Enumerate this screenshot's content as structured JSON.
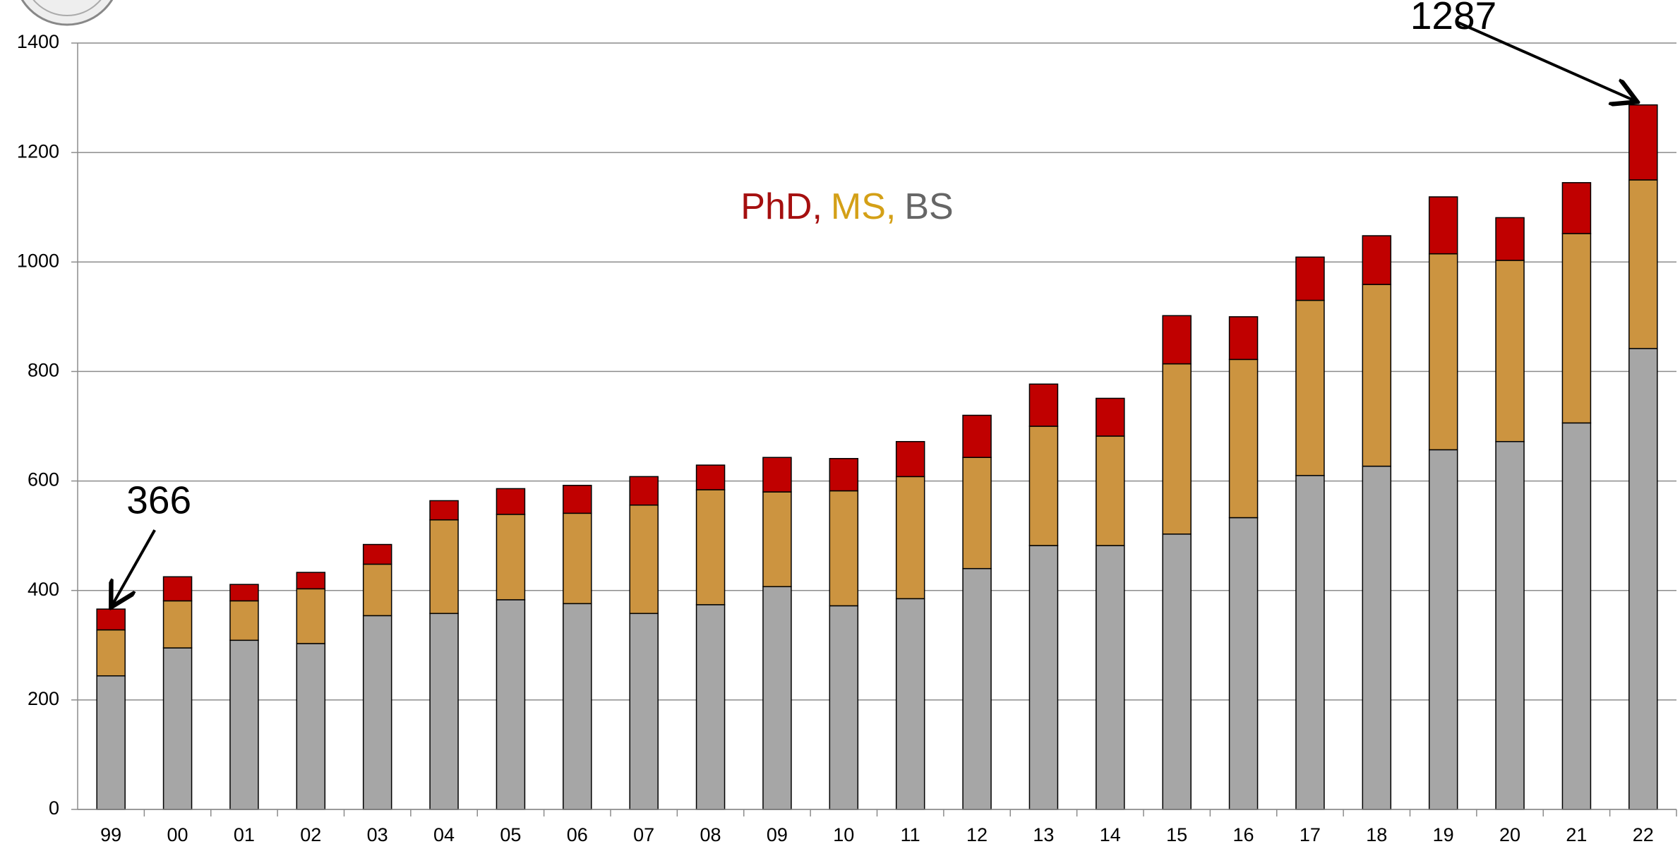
{
  "chart_data": {
    "type": "stacked_bar",
    "categories": [
      "99",
      "00",
      "01",
      "02",
      "03",
      "04",
      "05",
      "06",
      "07",
      "08",
      "09",
      "10",
      "11",
      "12",
      "13",
      "14",
      "15",
      "16",
      "17",
      "18",
      "19",
      "20",
      "21",
      "22"
    ],
    "series": [
      {
        "name": "BS",
        "color": "#a6a6a6",
        "values": [
          244,
          295,
          309,
          303,
          354,
          358,
          383,
          376,
          358,
          374,
          407,
          372,
          385,
          440,
          482,
          482,
          503,
          533,
          610,
          627,
          657,
          672,
          706,
          842
        ]
      },
      {
        "name": "MS",
        "color": "#cc9440",
        "values": [
          84,
          86,
          72,
          100,
          94,
          171,
          156,
          165,
          198,
          210,
          173,
          210,
          223,
          203,
          218,
          200,
          311,
          289,
          320,
          332,
          358,
          331,
          346,
          308
        ]
      },
      {
        "name": "PhD",
        "color": "#c00000",
        "values": [
          38,
          44,
          30,
          30,
          36,
          35,
          47,
          51,
          52,
          45,
          63,
          59,
          64,
          77,
          77,
          69,
          88,
          78,
          79,
          89,
          104,
          78,
          93,
          137
        ]
      }
    ],
    "legend": [
      {
        "text": "PhD,",
        "color": "#a50f0f"
      },
      {
        "text": "MS,",
        "color": "#d4a017"
      },
      {
        "text": "BS",
        "color": "#666666"
      }
    ],
    "annotations": [
      {
        "text": "366",
        "category": "99"
      },
      {
        "text": "1287",
        "category": "22"
      }
    ],
    "ylim": [
      0,
      1400
    ],
    "yticks": [
      0,
      200,
      400,
      600,
      800,
      1000,
      1200,
      1400
    ],
    "grid": true
  }
}
